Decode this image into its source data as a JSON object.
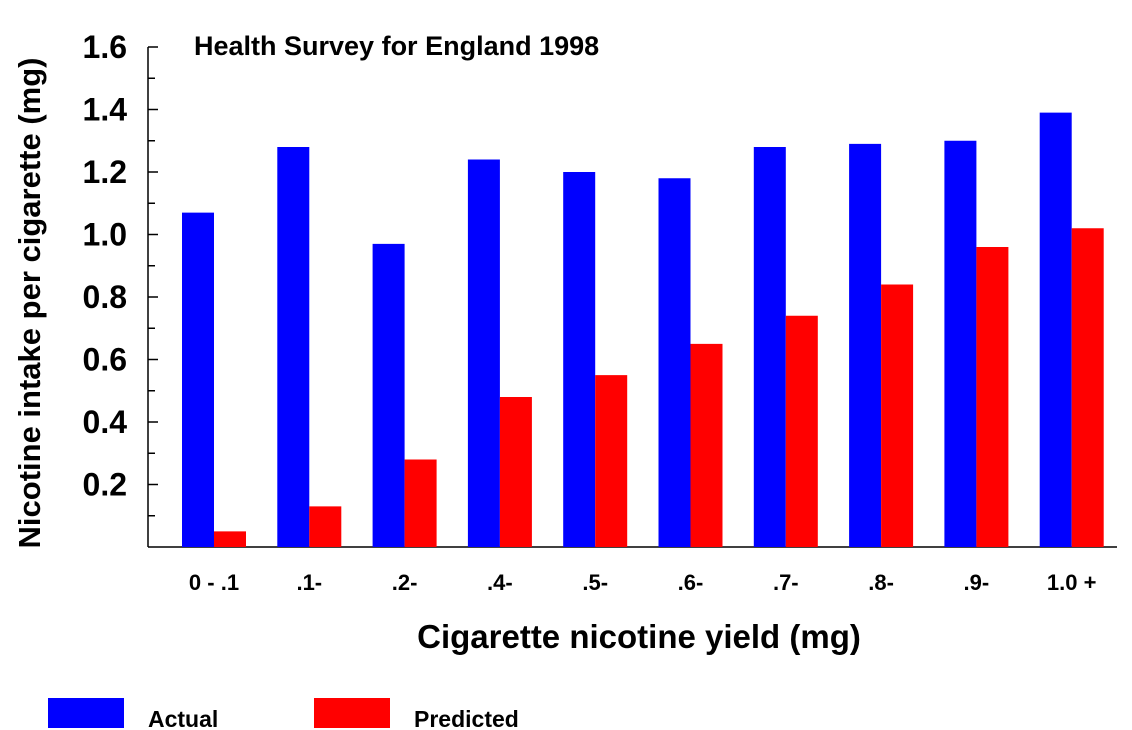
{
  "chart_data": {
    "type": "bar",
    "title": "Health Survey for England 1998",
    "xlabel": "Cigarette nicotine yield (mg)",
    "ylabel": "Nicotine intake per cigarette (mg)",
    "categories": [
      "0 - .1",
      ".1-",
      ".2-",
      ".4-",
      ".5-",
      ".6-",
      ".7-",
      ".8-",
      ".9-",
      "1.0 +"
    ],
    "series": [
      {
        "name": "Actual",
        "color": "#0000ff",
        "values": [
          1.07,
          1.28,
          0.97,
          1.24,
          1.2,
          1.18,
          1.28,
          1.29,
          1.3,
          1.39
        ]
      },
      {
        "name": "Predicted",
        "color": "#ff0000",
        "values": [
          0.05,
          0.13,
          0.28,
          0.48,
          0.55,
          0.65,
          0.74,
          0.84,
          0.96,
          1.02
        ]
      }
    ],
    "ylim": [
      0,
      1.6
    ],
    "yticks": [
      "0.2",
      "0.4",
      "0.6",
      "0.8",
      "1.0",
      "1.2",
      "1.4",
      "1.6"
    ],
    "grid": false,
    "legend_position": "bottom-left"
  }
}
